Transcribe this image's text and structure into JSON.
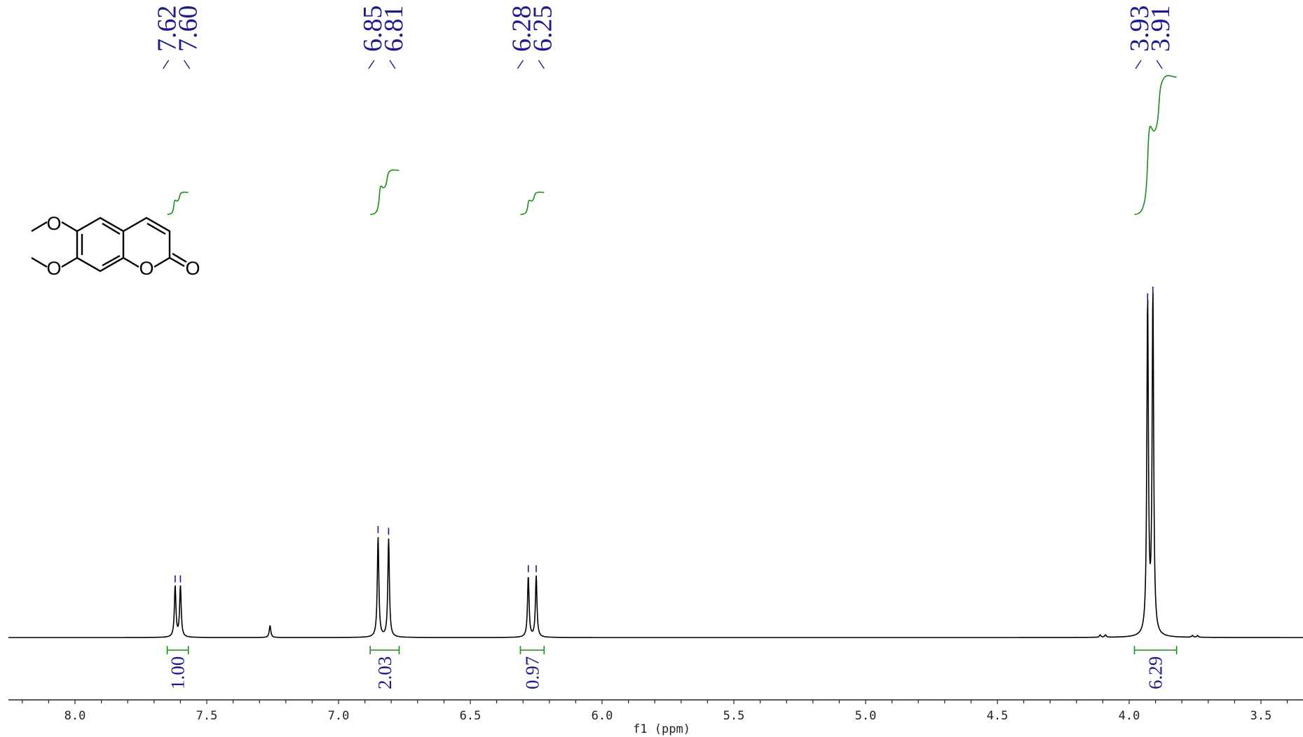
{
  "colors": {
    "spectrum": "#000000",
    "integral": "#1e8c1e",
    "peak_label": "#1a1a8c",
    "axis": "#222222"
  },
  "chart_data": {
    "type": "line",
    "title": "",
    "xlabel": "f1 (ppm)",
    "ylabel": "",
    "xlim": [
      8.25,
      3.26
    ],
    "x_reversed": true,
    "xticks": [
      8.0,
      7.5,
      7.0,
      6.5,
      6.0,
      5.5,
      5.0,
      4.5,
      4.0,
      3.5
    ],
    "xtick_labels": [
      "8.0",
      "7.5",
      "7.0",
      "6.5",
      "6.0",
      "5.5",
      "5.0",
      "4.5",
      "4.0",
      "3.5"
    ],
    "minor_tick_step": 0.1,
    "peaks": [
      {
        "ppm": 7.62,
        "height": 0.15
      },
      {
        "ppm": 7.6,
        "height": 0.15
      },
      {
        "ppm": 7.26,
        "height": 0.035
      },
      {
        "ppm": 6.85,
        "height": 0.295
      },
      {
        "ppm": 6.81,
        "height": 0.29
      },
      {
        "ppm": 6.28,
        "height": 0.18
      },
      {
        "ppm": 6.25,
        "height": 0.18
      },
      {
        "ppm": 4.11,
        "height": 0.007
      },
      {
        "ppm": 4.09,
        "height": 0.007
      },
      {
        "ppm": 3.93,
        "height": 0.98
      },
      {
        "ppm": 3.91,
        "height": 1.0
      },
      {
        "ppm": 3.76,
        "height": 0.005
      },
      {
        "ppm": 3.74,
        "height": 0.005
      }
    ],
    "peak_label_groups": [
      {
        "labels": [
          "7.62",
          "7.60"
        ],
        "ppms": [
          7.62,
          7.6
        ]
      },
      {
        "labels": [
          "6.85",
          "6.81"
        ],
        "ppms": [
          6.85,
          6.81
        ]
      },
      {
        "labels": [
          "6.28",
          "6.25"
        ],
        "ppms": [
          6.28,
          6.25
        ]
      },
      {
        "labels": [
          "3.93",
          "3.91"
        ],
        "ppms": [
          3.93,
          3.91
        ]
      }
    ],
    "integrals": [
      {
        "from": 7.65,
        "to": 7.57,
        "value": "1.00",
        "relative_height": 0.16
      },
      {
        "from": 6.88,
        "to": 6.77,
        "value": "2.03",
        "relative_height": 0.32
      },
      {
        "from": 6.31,
        "to": 6.22,
        "value": "0.97",
        "relative_height": 0.16
      },
      {
        "from": 3.98,
        "to": 3.82,
        "value": "6.29",
        "relative_height": 1.0
      }
    ]
  },
  "structure": {
    "atom_labels": [
      "O",
      "O",
      "O",
      "O"
    ]
  }
}
